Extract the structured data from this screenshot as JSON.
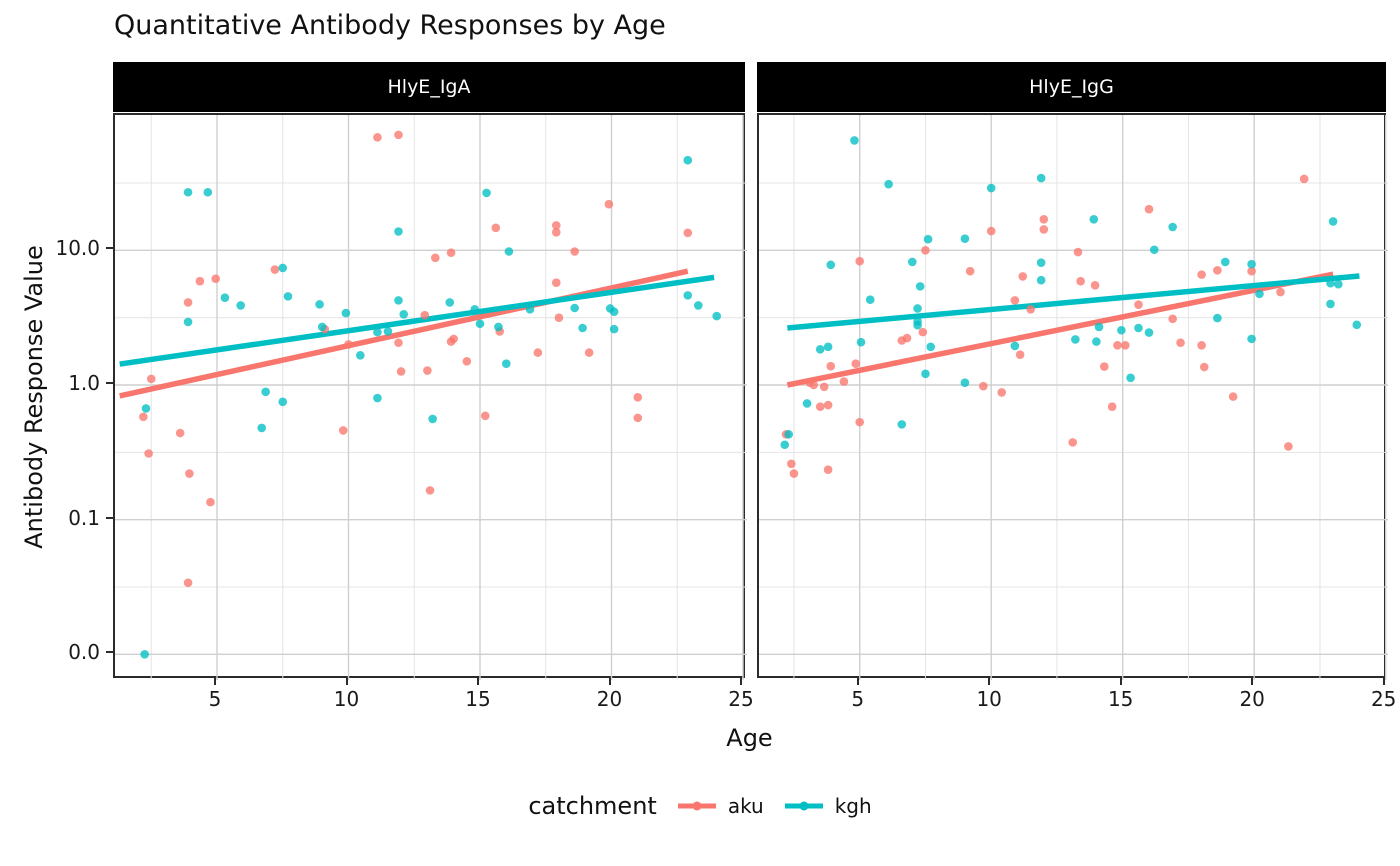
{
  "title": "Quantitative Antibody Responses by Age",
  "xlabel": "Age",
  "ylabel": "Antibody Response Value",
  "legend": {
    "title": "catchment",
    "items": [
      {
        "label": "aku",
        "color": "#F8766D"
      },
      {
        "label": "kgh",
        "color": "#00BFC4"
      }
    ]
  },
  "colors": {
    "aku": "#F8766D",
    "kgh": "#00BFC4",
    "strip_bg": "#000000",
    "strip_text": "#ffffff",
    "panel_bg": "#ffffff",
    "panel_border": "#2b2b2b",
    "grid_major": "#cfcfcf",
    "grid_minor": "#e4e4e4"
  },
  "axes": {
    "x": {
      "ticks": [
        "5",
        "10",
        "15",
        "20",
        "25"
      ],
      "tick_values": [
        5,
        10,
        15,
        20,
        25
      ],
      "minor_values": [
        2.5,
        7.5,
        12.5,
        17.5,
        22.5
      ],
      "range": [
        1.1,
        25.2
      ]
    },
    "y": {
      "ticks": [
        "10.0",
        "1.0",
        "0.1",
        "0.0"
      ],
      "tick_values": [
        10,
        1,
        0.1,
        0
      ],
      "scale": "pseudo-log10 (0.0 drawn one decade below 0.1)",
      "minor_values": [
        31.6,
        3.16,
        0.316,
        0.0316
      ]
    }
  },
  "chart_data": [
    {
      "type": "scatter",
      "facet": "HlyE_IgA",
      "xlabel": "Age",
      "ylabel": "Antibody Response Value",
      "series": [
        {
          "name": "aku",
          "points": [
            [
              2.2,
              0.58
            ],
            [
              2.4,
              0.31
            ],
            [
              2.5,
              1.11
            ],
            [
              3.6,
              0.44
            ],
            [
              3.9,
              4.1
            ],
            [
              3.9,
              0.034
            ],
            [
              3.95,
              0.22
            ],
            [
              4.35,
              5.9
            ],
            [
              4.75,
              0.135
            ],
            [
              4.95,
              6.15
            ],
            [
              7.2,
              7.2
            ],
            [
              9.1,
              2.6
            ],
            [
              9.8,
              0.46
            ],
            [
              10,
              2.0
            ],
            [
              11.1,
              69
            ],
            [
              11.9,
              72
            ],
            [
              11.9,
              2.06
            ],
            [
              12,
              1.26
            ],
            [
              12.9,
              3.3
            ],
            [
              13,
              1.28
            ],
            [
              13.1,
              0.165
            ],
            [
              13.3,
              8.8
            ],
            [
              13.9,
              9.6
            ],
            [
              13.9,
              2.1
            ],
            [
              14,
              2.2
            ],
            [
              14.5,
              1.5
            ],
            [
              15.2,
              0.59
            ],
            [
              15.6,
              14.7
            ],
            [
              15.75,
              2.5
            ],
            [
              17.2,
              1.74
            ],
            [
              17.9,
              15.3
            ],
            [
              17.9,
              13.6
            ],
            [
              17.9,
              5.75
            ],
            [
              18,
              3.16
            ],
            [
              18.6,
              9.8
            ],
            [
              19.15,
              1.74
            ],
            [
              19.9,
              22
            ],
            [
              21,
              0.81
            ],
            [
              21,
              0.57
            ],
            [
              22.9,
              13.5
            ]
          ]
        },
        {
          "name": "kgh",
          "points": [
            [
              2.25,
              0
            ],
            [
              2.3,
              0.67
            ],
            [
              3.9,
              27
            ],
            [
              3.9,
              2.94
            ],
            [
              4.65,
              27
            ],
            [
              5.3,
              4.45
            ],
            [
              5.9,
              3.9
            ],
            [
              6.7,
              0.48
            ],
            [
              6.85,
              0.89
            ],
            [
              7.5,
              7.4
            ],
            [
              7.5,
              0.75
            ],
            [
              7.7,
              4.55
            ],
            [
              8.9,
              3.97
            ],
            [
              9,
              2.7
            ],
            [
              9.9,
              3.42
            ],
            [
              10.45,
              1.66
            ],
            [
              11.1,
              2.47
            ],
            [
              11.1,
              0.8
            ],
            [
              11.5,
              2.5
            ],
            [
              11.9,
              13.8
            ],
            [
              11.9,
              4.25
            ],
            [
              12.1,
              3.35
            ],
            [
              13.2,
              0.56
            ],
            [
              13.85,
              4.1
            ],
            [
              14.8,
              3.65
            ],
            [
              15,
              2.85
            ],
            [
              15.25,
              26.7
            ],
            [
              15.7,
              2.7
            ],
            [
              16,
              1.44
            ],
            [
              16.1,
              9.8
            ],
            [
              16.9,
              3.65
            ],
            [
              18.6,
              3.73
            ],
            [
              18.9,
              2.65
            ],
            [
              19.95,
              3.7
            ],
            [
              20.1,
              3.5
            ],
            [
              20.1,
              2.6
            ],
            [
              22.9,
              46.7
            ],
            [
              22.9,
              4.63
            ],
            [
              23.3,
              3.9
            ],
            [
              24,
              3.25
            ]
          ]
        }
      ],
      "trend_lines": [
        {
          "name": "aku",
          "x": [
            1.3,
            22.9
          ],
          "y": [
            0.83,
            7.0
          ]
        },
        {
          "name": "kgh",
          "x": [
            1.3,
            23.9
          ],
          "y": [
            1.43,
            6.3
          ]
        }
      ]
    },
    {
      "type": "scatter",
      "facet": "HlyE_IgG",
      "xlabel": "Age",
      "ylabel": "Antibody Response Value",
      "series": [
        {
          "name": "aku",
          "points": [
            [
              2.2,
              0.43
            ],
            [
              2.4,
              0.26
            ],
            [
              2.5,
              0.22
            ],
            [
              3.1,
              1.04
            ],
            [
              3.25,
              1.0
            ],
            [
              3.5,
              0.69
            ],
            [
              3.65,
              0.97
            ],
            [
              3.8,
              0.71
            ],
            [
              3.8,
              0.235
            ],
            [
              3.9,
              1.38
            ],
            [
              4.4,
              1.06
            ],
            [
              4.85,
              1.44
            ],
            [
              5,
              8.3
            ],
            [
              5,
              0.53
            ],
            [
              6.6,
              2.14
            ],
            [
              6.8,
              2.23
            ],
            [
              7.4,
              2.47
            ],
            [
              7.5,
              10
            ],
            [
              9.2,
              7
            ],
            [
              9.7,
              0.98
            ],
            [
              10,
              13.9
            ],
            [
              10.4,
              0.88
            ],
            [
              10.9,
              4.25
            ],
            [
              11.1,
              1.68
            ],
            [
              11.2,
              6.4
            ],
            [
              11.5,
              3.65
            ],
            [
              12,
              17
            ],
            [
              12,
              14.3
            ],
            [
              13.1,
              0.375
            ],
            [
              13.3,
              9.7
            ],
            [
              13.4,
              5.9
            ],
            [
              13.95,
              5.5
            ],
            [
              14.3,
              1.37
            ],
            [
              14.6,
              0.69
            ],
            [
              14.8,
              1.97
            ],
            [
              15.1,
              1.97
            ],
            [
              15.6,
              3.95
            ],
            [
              16,
              20.2
            ],
            [
              16.9,
              3.1
            ],
            [
              17.2,
              2.06
            ],
            [
              18,
              6.6
            ],
            [
              18,
              1.97
            ],
            [
              18.1,
              1.36
            ],
            [
              18.6,
              7.1
            ],
            [
              19.2,
              0.82
            ],
            [
              19.9,
              7
            ],
            [
              21,
              4.9
            ],
            [
              21.3,
              0.35
            ],
            [
              21.9,
              33.9
            ]
          ]
        },
        {
          "name": "kgh",
          "points": [
            [
              2.15,
              0.36
            ],
            [
              2.3,
              0.43
            ],
            [
              3,
              0.73
            ],
            [
              3.5,
              1.84
            ],
            [
              3.8,
              1.92
            ],
            [
              3.9,
              7.8
            ],
            [
              4.8,
              65.5
            ],
            [
              5.05,
              2.08
            ],
            [
              5.4,
              4.3
            ],
            [
              6.1,
              31
            ],
            [
              6.6,
              0.51
            ],
            [
              7,
              8.2
            ],
            [
              7.2,
              3.7
            ],
            [
              7.2,
              2.97
            ],
            [
              7.2,
              2.78
            ],
            [
              7.3,
              5.4
            ],
            [
              7.5,
              1.21
            ],
            [
              7.6,
              12.1
            ],
            [
              7.7,
              1.92
            ],
            [
              9,
              12.2
            ],
            [
              9,
              1.04
            ],
            [
              10,
              29
            ],
            [
              10.9,
              1.95
            ],
            [
              11.9,
              34.4
            ],
            [
              11.9,
              8.1
            ],
            [
              11.9,
              6
            ],
            [
              13.2,
              2.18
            ],
            [
              13.9,
              17
            ],
            [
              14,
              2.1
            ],
            [
              14.1,
              2.7
            ],
            [
              14.95,
              2.55
            ],
            [
              15.3,
              1.13
            ],
            [
              15.6,
              2.65
            ],
            [
              16,
              2.45
            ],
            [
              16.2,
              10.1
            ],
            [
              16.9,
              14.9
            ],
            [
              18.6,
              3.14
            ],
            [
              18.9,
              8.2
            ],
            [
              19.9,
              7.9
            ],
            [
              19.9,
              2.2
            ],
            [
              20.2,
              4.75
            ],
            [
              22.9,
              5.7
            ],
            [
              22.9,
              4
            ],
            [
              23,
              16.4
            ],
            [
              23.2,
              5.6
            ],
            [
              23.9,
              2.8
            ]
          ]
        }
      ],
      "trend_lines": [
        {
          "name": "aku",
          "x": [
            2.25,
            23.0
          ],
          "y": [
            1.0,
            6.65
          ]
        },
        {
          "name": "kgh",
          "x": [
            2.25,
            24.0
          ],
          "y": [
            2.65,
            6.45
          ]
        }
      ]
    }
  ]
}
